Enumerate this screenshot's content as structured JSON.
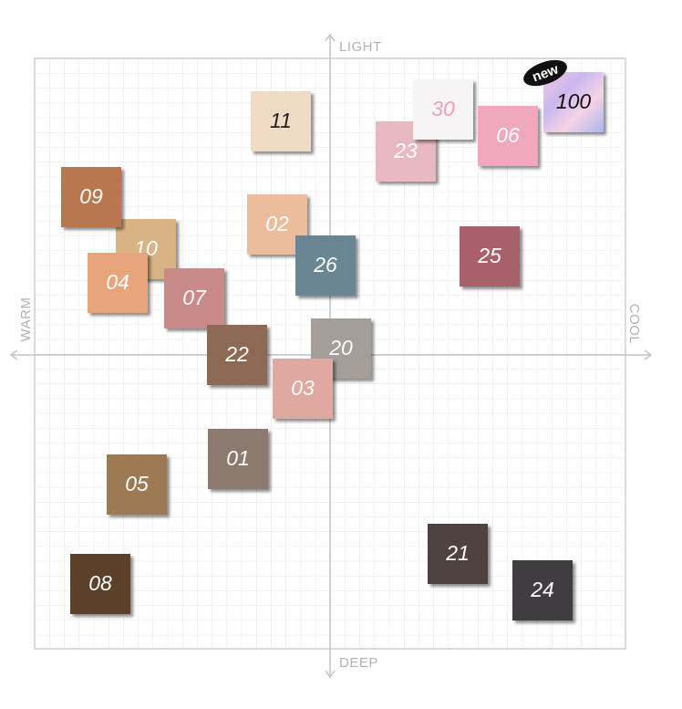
{
  "axes": {
    "top": "LIGHT",
    "bottom": "DEEP",
    "left": "WARM",
    "right": "COOL"
  },
  "badge": "new",
  "swatches": [
    {
      "label": "11"
    },
    {
      "label": "23"
    },
    {
      "label": "30"
    },
    {
      "label": "06"
    },
    {
      "label": "100"
    },
    {
      "label": "10"
    },
    {
      "label": "09"
    },
    {
      "label": "02"
    },
    {
      "label": "26"
    },
    {
      "label": "25"
    },
    {
      "label": "04"
    },
    {
      "label": "07"
    },
    {
      "label": "20"
    },
    {
      "label": "22"
    },
    {
      "label": "03"
    },
    {
      "label": "01"
    },
    {
      "label": "05"
    },
    {
      "label": "21"
    },
    {
      "label": "08"
    },
    {
      "label": "24"
    }
  ]
}
